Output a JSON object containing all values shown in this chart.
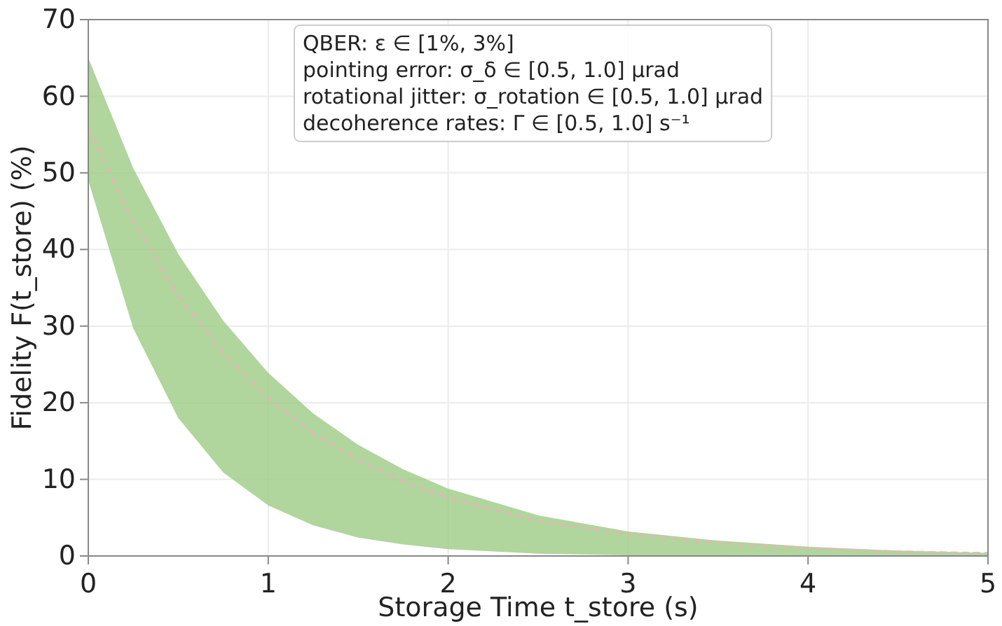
{
  "chart_data": {
    "type": "line",
    "xlabel": "Storage Time t_store (s)",
    "ylabel": "Fidelity F(t_store) (%)",
    "x": [
      0,
      0.25,
      0.5,
      0.75,
      1,
      1.25,
      1.5,
      1.75,
      2,
      2.5,
      3,
      3.5,
      4,
      4.5,
      5
    ],
    "series": [
      {
        "color": "#e8b4b8",
        "line_style": "dashed",
        "values": [
          56,
          43.6,
          34.0,
          26.5,
          20.6,
          16.0,
          12.5,
          9.7,
          7.6,
          4.6,
          2.8,
          1.7,
          1.0,
          0.6,
          0.4
        ],
        "lower": [
          49,
          29.7,
          18.0,
          10.9,
          6.6,
          4.0,
          2.4,
          1.5,
          0.9,
          0.3,
          0.1,
          0,
          0,
          0,
          0
        ],
        "upper": [
          65,
          50.6,
          39.4,
          30.7,
          23.9,
          18.6,
          14.5,
          11.3,
          8.8,
          5.3,
          3.2,
          2.0,
          1.2,
          0.7,
          0.4
        ]
      }
    ],
    "xlim": [
      0,
      5
    ],
    "xticks": [
      0,
      1,
      2,
      3,
      4,
      5
    ],
    "ylim": [
      0,
      70
    ],
    "yticks": [
      0,
      10,
      20,
      30,
      40,
      50,
      60,
      70
    ],
    "grid": true,
    "annotations": [
      "QBER: ε ∈ [1%, 3%]",
      "pointing error: σ_δ ∈ [0.5, 1.0] μrad",
      "rotational jitter: σ_rotation ∈ [0.5, 1.0] μrad",
      "decoherence rates: Γ ∈ [0.5, 1.0] s⁻¹"
    ]
  }
}
